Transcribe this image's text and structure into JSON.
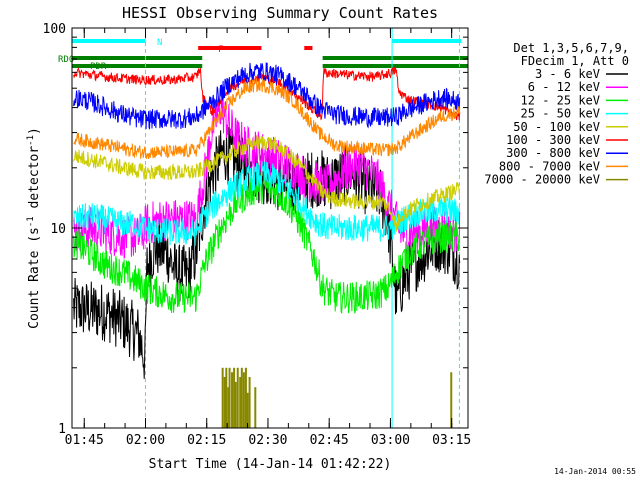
{
  "chart_data": {
    "type": "line",
    "title": "HESSI Observing Summary Count Rates",
    "xlabel": "Start Time (14-Jan-14 01:42:22)",
    "ylabel": "Count Rate (s⁻¹ detector⁻¹)",
    "ylabel_parts": {
      "main": "Count Rate (s",
      "sup1": "-1",
      "mid": " detector",
      "sup2": "-1",
      "end": ")"
    },
    "y_scale": "log",
    "ylim": [
      1,
      100
    ],
    "y_ticks": [
      {
        "value": 1,
        "label": "1"
      },
      {
        "value": 10,
        "label": "10"
      },
      {
        "value": 100,
        "label": "100"
      }
    ],
    "xlim_minutes": [
      -0.4,
      96.6
    ],
    "x_ticks": [
      {
        "value": 2.6,
        "label": "01:45"
      },
      {
        "value": 17.6,
        "label": "02:00"
      },
      {
        "value": 32.6,
        "label": "02:15"
      },
      {
        "value": 47.6,
        "label": "02:30"
      },
      {
        "value": 62.6,
        "label": "02:45"
      },
      {
        "value": 77.6,
        "label": "03:00"
      },
      {
        "value": 92.6,
        "label": "03:15"
      }
    ],
    "legend": {
      "header": [
        "Det 1,3,5,6,7,9,",
        "FDecim 1, Att 0"
      ],
      "placement": "right",
      "items": [
        {
          "label": "3 - 6 keV",
          "color": "#000000"
        },
        {
          "label": "6 - 12 keV",
          "color": "#ff00ff"
        },
        {
          "label": "12 - 25 keV",
          "color": "#00ee00"
        },
        {
          "label": "25 - 50 keV",
          "color": "#00ffff"
        },
        {
          "label": "50 - 100 keV",
          "color": "#cccc00"
        },
        {
          "label": "100 - 300 keV",
          "color": "#ff0000"
        },
        {
          "label": "300 - 800 keV",
          "color": "#0000ff"
        },
        {
          "label": "800 - 7000 keV",
          "color": "#ff8800"
        },
        {
          "label": "7000 - 20000 keV",
          "color": "#888800"
        }
      ]
    },
    "flags": [
      {
        "label": "N",
        "color": "#00ffff",
        "segments": [
          [
            -0.4,
            17.6
          ],
          [
            78.0,
            95.0
          ]
        ]
      },
      {
        "label": "F",
        "color": "#ff0000",
        "segments": [
          [
            30.5,
            46.0
          ],
          [
            56.5,
            58.5
          ]
        ]
      },
      {
        "label": "RD0",
        "color": "#008000",
        "segments": [
          [
            -0.4,
            31.5
          ],
          [
            61.0,
            96.6
          ]
        ]
      },
      {
        "label": "PDR",
        "color": "#008000",
        "segments": [
          [
            -0.4,
            31.5
          ],
          [
            61.0,
            96.6
          ]
        ]
      }
    ],
    "night_boundaries": [
      {
        "x": 17.6,
        "style": "dashed",
        "color": "#00ffff"
      },
      {
        "x": 78.0,
        "style": "solid",
        "color": "#00ffff"
      },
      {
        "x": 94.5,
        "style": "dashed",
        "color": "#00ffff"
      }
    ],
    "series": [
      {
        "name": "3 - 6 keV",
        "color": "#000000",
        "noise": 0.15,
        "points": [
          [
            0,
            4.0
          ],
          [
            8,
            3.8
          ],
          [
            12,
            3.4
          ],
          [
            16,
            2.9
          ],
          [
            17.5,
            2.2
          ],
          [
            18,
            6.5
          ],
          [
            20,
            8
          ],
          [
            23,
            7.5
          ],
          [
            25,
            6
          ],
          [
            28,
            5.8
          ],
          [
            30,
            7.5
          ],
          [
            32,
            13
          ],
          [
            34,
            19
          ],
          [
            37,
            24
          ],
          [
            40,
            21
          ],
          [
            44,
            19
          ],
          [
            48,
            18
          ],
          [
            52,
            16
          ],
          [
            56,
            17
          ],
          [
            60,
            18
          ],
          [
            62,
            17
          ],
          [
            64,
            17.5
          ],
          [
            68,
            19
          ],
          [
            72,
            16
          ],
          [
            75,
            15
          ],
          [
            77,
            11
          ],
          [
            79,
            4.5
          ],
          [
            81,
            5.5
          ],
          [
            83,
            6.5
          ],
          [
            86,
            7.5
          ],
          [
            89,
            8.5
          ],
          [
            92,
            8
          ],
          [
            94,
            7
          ]
        ]
      },
      {
        "name": "6 - 12 keV",
        "color": "#ff00ff",
        "noise": 0.11,
        "points": [
          [
            0,
            9.5
          ],
          [
            4,
            10
          ],
          [
            8,
            9.5
          ],
          [
            12,
            9
          ],
          [
            16,
            9
          ],
          [
            18,
            10.5
          ],
          [
            22,
            11
          ],
          [
            26,
            11
          ],
          [
            30,
            11
          ],
          [
            32,
            18
          ],
          [
            34,
            32
          ],
          [
            36,
            40
          ],
          [
            38,
            33
          ],
          [
            40,
            28
          ],
          [
            43,
            25
          ],
          [
            46,
            24
          ],
          [
            50,
            22
          ],
          [
            54,
            20
          ],
          [
            58,
            17
          ],
          [
            62,
            16
          ],
          [
            66,
            19
          ],
          [
            70,
            21
          ],
          [
            74,
            18
          ],
          [
            76,
            15
          ],
          [
            78,
            12
          ],
          [
            80,
            9.5
          ],
          [
            84,
            9.5
          ],
          [
            88,
            10
          ],
          [
            92,
            10
          ],
          [
            94,
            9.5
          ]
        ]
      },
      {
        "name": "12 - 25 keV",
        "color": "#00ee00",
        "noise": 0.08,
        "points": [
          [
            0,
            8.5
          ],
          [
            4,
            7.5
          ],
          [
            8,
            6.5
          ],
          [
            12,
            6
          ],
          [
            15,
            5.5
          ],
          [
            18,
            5
          ],
          [
            24,
            4.5
          ],
          [
            30,
            4.5
          ],
          [
            32,
            6.5
          ],
          [
            36,
            10
          ],
          [
            40,
            13.5
          ],
          [
            44,
            15.5
          ],
          [
            47,
            16
          ],
          [
            50,
            15
          ],
          [
            53,
            13
          ],
          [
            56,
            10
          ],
          [
            59,
            7
          ],
          [
            61,
            5
          ],
          [
            64,
            4.5
          ],
          [
            70,
            4.5
          ],
          [
            74,
            4.6
          ],
          [
            77,
            5
          ],
          [
            79,
            6
          ],
          [
            82,
            7.5
          ],
          [
            86,
            8.5
          ],
          [
            90,
            9
          ],
          [
            94,
            9
          ]
        ]
      },
      {
        "name": "25 - 50 keV",
        "color": "#00ffff",
        "noise": 0.07,
        "points": [
          [
            0,
            11
          ],
          [
            4,
            11.5
          ],
          [
            8,
            11
          ],
          [
            12,
            10.5
          ],
          [
            15,
            10.5
          ],
          [
            18,
            9.8
          ],
          [
            24,
            9.5
          ],
          [
            30,
            9.5
          ],
          [
            32,
            11.5
          ],
          [
            36,
            14
          ],
          [
            40,
            16.5
          ],
          [
            44,
            18
          ],
          [
            47,
            18.5
          ],
          [
            50,
            17.5
          ],
          [
            53,
            15.5
          ],
          [
            56,
            13
          ],
          [
            59,
            11
          ],
          [
            62,
            10
          ],
          [
            68,
            10
          ],
          [
            74,
            10
          ],
          [
            77,
            10
          ],
          [
            79,
            10.5
          ],
          [
            82,
            11.5
          ],
          [
            86,
            12
          ],
          [
            90,
            12.5
          ],
          [
            94,
            12
          ]
        ]
      },
      {
        "name": "50 - 100 keV",
        "color": "#cccc00",
        "noise": 0.04,
        "points": [
          [
            0,
            23
          ],
          [
            4,
            22
          ],
          [
            8,
            21
          ],
          [
            12,
            20
          ],
          [
            15,
            19.5
          ],
          [
            18,
            19
          ],
          [
            24,
            19
          ],
          [
            30,
            19
          ],
          [
            32,
            20
          ],
          [
            36,
            22
          ],
          [
            40,
            24.5
          ],
          [
            44,
            26.5
          ],
          [
            47,
            27
          ],
          [
            50,
            25.5
          ],
          [
            53,
            23
          ],
          [
            56,
            20
          ],
          [
            59,
            17
          ],
          [
            61,
            15
          ],
          [
            64,
            14
          ],
          [
            70,
            13.5
          ],
          [
            74,
            13.5
          ],
          [
            76,
            13.5
          ],
          [
            78,
            12
          ],
          [
            79,
            10
          ],
          [
            80,
            11.5
          ],
          [
            84,
            13
          ],
          [
            88,
            14
          ],
          [
            92,
            15
          ],
          [
            94,
            15.5
          ]
        ]
      },
      {
        "name": "100 - 300 keV",
        "color": "#ff0000",
        "noise": 0.025,
        "points": [
          [
            0,
            60
          ],
          [
            8,
            57
          ],
          [
            16,
            55
          ],
          [
            24,
            55
          ],
          [
            30,
            57
          ],
          [
            31,
            63
          ],
          [
            31.6,
            45
          ],
          [
            34,
            38
          ],
          [
            38,
            50
          ],
          [
            42,
            55
          ],
          [
            46,
            57
          ],
          [
            50,
            54
          ],
          [
            54,
            47
          ],
          [
            58,
            40
          ],
          [
            60.8,
            36
          ],
          [
            61.2,
            60
          ],
          [
            68,
            58
          ],
          [
            74,
            57
          ],
          [
            78,
            60
          ],
          [
            79,
            62
          ],
          [
            79.6,
            48
          ],
          [
            82,
            44
          ],
          [
            86,
            42
          ],
          [
            90,
            40
          ],
          [
            94,
            36
          ]
        ]
      },
      {
        "name": "300 - 800 keV",
        "color": "#0000ff",
        "noise": 0.05,
        "points": [
          [
            0,
            45
          ],
          [
            4,
            43
          ],
          [
            8,
            40
          ],
          [
            12,
            37
          ],
          [
            16,
            35
          ],
          [
            20,
            35
          ],
          [
            26,
            35
          ],
          [
            30,
            36
          ],
          [
            34,
            43
          ],
          [
            38,
            52
          ],
          [
            42,
            59
          ],
          [
            45,
            61
          ],
          [
            48,
            60
          ],
          [
            51,
            57
          ],
          [
            54,
            52
          ],
          [
            57,
            46
          ],
          [
            60,
            40
          ],
          [
            64,
            37
          ],
          [
            70,
            36
          ],
          [
            76,
            35.5
          ],
          [
            79,
            36
          ],
          [
            82,
            39
          ],
          [
            86,
            42
          ],
          [
            90,
            45
          ],
          [
            94,
            43
          ]
        ]
      },
      {
        "name": "800 - 7000 keV",
        "color": "#ff8800",
        "noise": 0.035,
        "points": [
          [
            0,
            28
          ],
          [
            4,
            27
          ],
          [
            8,
            26
          ],
          [
            12,
            25
          ],
          [
            16,
            24
          ],
          [
            20,
            24
          ],
          [
            26,
            24
          ],
          [
            30,
            24.5
          ],
          [
            34,
            32
          ],
          [
            38,
            42
          ],
          [
            42,
            50
          ],
          [
            45,
            52
          ],
          [
            48,
            51
          ],
          [
            51,
            48
          ],
          [
            54,
            43
          ],
          [
            57,
            36
          ],
          [
            60,
            30
          ],
          [
            64,
            26
          ],
          [
            70,
            25
          ],
          [
            76,
            24.5
          ],
          [
            79,
            25
          ],
          [
            82,
            28
          ],
          [
            86,
            32
          ],
          [
            90,
            36
          ],
          [
            94,
            38
          ]
        ]
      }
    ],
    "high_energy_spikes": {
      "name": "7000 - 20000 keV",
      "color": "#888800",
      "base": 1,
      "events": [
        [
          36.5,
          2.0
        ],
        [
          37.0,
          1.8
        ],
        [
          37.4,
          2.0
        ],
        [
          37.9,
          1.6
        ],
        [
          38.2,
          2.0
        ],
        [
          38.8,
          1.9
        ],
        [
          39.3,
          2.0
        ],
        [
          39.7,
          1.7
        ],
        [
          40.2,
          2.0
        ],
        [
          40.8,
          1.8
        ],
        [
          41.2,
          2.0
        ],
        [
          41.7,
          1.9
        ],
        [
          42.2,
          2.0
        ],
        [
          42.6,
          1.5
        ],
        [
          43.1,
          1.8
        ],
        [
          44.5,
          1.6
        ],
        [
          92.5,
          1.9
        ]
      ]
    }
  },
  "footer": {
    "timestamp": "14-Jan-2014 00:55"
  }
}
